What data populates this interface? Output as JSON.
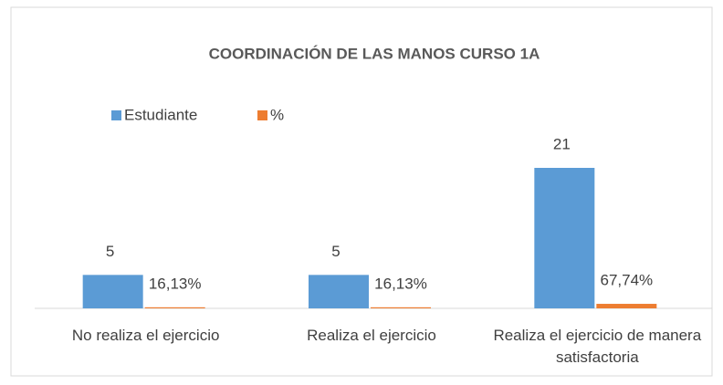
{
  "chart_data": {
    "type": "bar",
    "title": "COORDINACIÓN DE LAS MANOS CURSO 1A",
    "categories": [
      "No realiza el ejercicio",
      "Realiza el ejercicio",
      "Realiza el ejercicio de manera satisfactoria"
    ],
    "series": [
      {
        "name": "Estudiante",
        "color": "#5b9bd5",
        "values": [
          5,
          5,
          21
        ]
      },
      {
        "name": "%",
        "color": "#ed7d31",
        "values": [
          0.1613,
          0.1613,
          0.6774
        ],
        "value_labels": [
          "16,13%",
          "16,13%",
          "67,74%"
        ]
      }
    ],
    "legend": "top-left"
  }
}
